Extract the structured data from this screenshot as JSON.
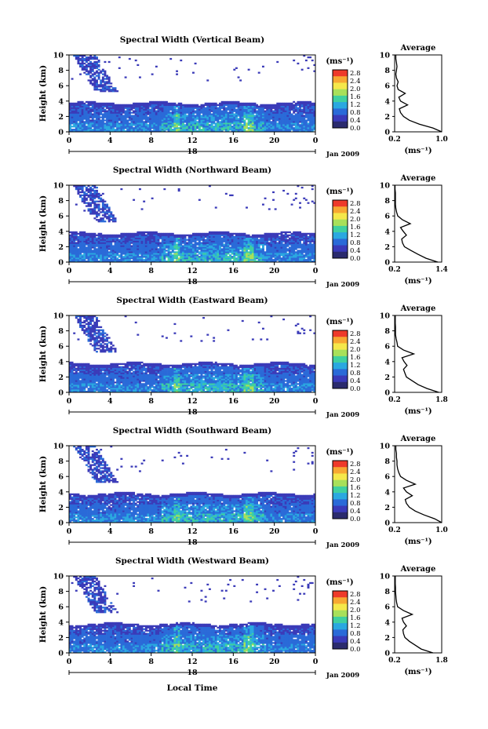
{
  "figure": {
    "common": {
      "ylabel": "Height (km)",
      "unit_label": "(ms⁻¹)",
      "colorbar_ticks": [
        "2.8",
        "2.4",
        "2.0",
        "1.6",
        "1.2",
        "0.8",
        "0.4",
        "0.0"
      ],
      "colorbar_colors": [
        "#ee3a2a",
        "#f7a832",
        "#f5e84a",
        "#a8e05a",
        "#3fd0a0",
        "#2aa8e0",
        "#2a6ad8",
        "#3a3ab8",
        "#2b2b6e"
      ],
      "x_ticks": [
        "0",
        "4",
        "8",
        "12",
        "16",
        "20",
        "0"
      ],
      "y_ticks": [
        "0",
        "2",
        "4",
        "6",
        "8",
        "10"
      ],
      "day_label": "18",
      "month_label": "Jan 2009",
      "avg_title": "Average",
      "avg_y_ticks": [
        "0",
        "2",
        "4",
        "6",
        "8",
        "10"
      ],
      "avg_xlabel": "(ms⁻¹)",
      "xlabel_bottom": "Local Time"
    },
    "panels": [
      {
        "title": "Spectral Width (Vertical Beam)",
        "avg_x_ticks": [
          "0.2",
          "1.0"
        ]
      },
      {
        "title": "Spectral Width (Northward Beam)",
        "avg_x_ticks": [
          "0.2",
          "1.4"
        ]
      },
      {
        "title": "Spectral Width (Eastward Beam)",
        "avg_x_ticks": [
          "0.2",
          "1.8"
        ]
      },
      {
        "title": "Spectral Width (Southward Beam)",
        "avg_x_ticks": [
          "0.2",
          "1.0"
        ]
      },
      {
        "title": "Spectral Width (Westward Beam)",
        "avg_x_ticks": [
          "0.2",
          "1.8"
        ]
      }
    ]
  },
  "chart_data": [
    {
      "type": "heatmap",
      "title": "Spectral Width (Vertical Beam)",
      "xlabel": "",
      "ylabel": "Height (km)",
      "xlim": [
        0,
        24
      ],
      "ylim": [
        0,
        10
      ],
      "colorbar_range": [
        0.0,
        2.8
      ],
      "colorbar_unit": "(ms⁻¹)",
      "average_profile": {
        "title": "Average",
        "xlim": [
          0.2,
          1.0
        ],
        "x": [
          1.0,
          0.85,
          0.62,
          0.45,
          0.35,
          0.3,
          0.28,
          0.42,
          0.3,
          0.27,
          0.38,
          0.26,
          0.24,
          0.26,
          0.23,
          0.22,
          0.23,
          0.24,
          0.23,
          0.22,
          0.22
        ],
        "y": [
          0,
          0.5,
          1,
          1.5,
          2,
          2.5,
          3,
          3.5,
          4,
          4.5,
          5,
          5.5,
          6,
          6.5,
          7,
          7.5,
          8,
          8.5,
          9,
          9.5,
          10
        ]
      }
    },
    {
      "type": "heatmap",
      "title": "Spectral Width (Northward Beam)",
      "xlabel": "",
      "ylabel": "Height (km)",
      "xlim": [
        0,
        24
      ],
      "ylim": [
        0,
        10
      ],
      "colorbar_range": [
        0.0,
        2.8
      ],
      "colorbar_unit": "(ms⁻¹)",
      "average_profile": {
        "title": "Average",
        "xlim": [
          0.2,
          1.4
        ],
        "x": [
          1.3,
          1.0,
          0.8,
          0.62,
          0.45,
          0.4,
          0.38,
          0.5,
          0.42,
          0.35,
          0.6,
          0.4,
          0.28,
          0.25,
          0.23,
          0.22,
          0.22,
          0.22,
          0.22,
          0.21,
          0.21
        ],
        "y": [
          0,
          0.5,
          1,
          1.5,
          2,
          2.5,
          3,
          3.5,
          4,
          4.5,
          5,
          5.5,
          6,
          6.5,
          7,
          7.5,
          8,
          8.5,
          9,
          9.5,
          10
        ]
      }
    },
    {
      "type": "heatmap",
      "title": "Spectral Width (Eastward Beam)",
      "xlabel": "",
      "ylabel": "Height (km)",
      "xlim": [
        0,
        24
      ],
      "ylim": [
        0,
        10
      ],
      "colorbar_range": [
        0.0,
        2.8
      ],
      "colorbar_unit": "(ms⁻¹)",
      "average_profile": {
        "title": "Average",
        "xlim": [
          0.2,
          1.8
        ],
        "x": [
          1.7,
          1.3,
          1.0,
          0.8,
          0.6,
          0.55,
          0.5,
          0.62,
          0.52,
          0.45,
          0.85,
          0.5,
          0.3,
          0.28,
          0.25,
          0.23,
          0.23,
          0.23,
          0.22,
          0.22,
          0.22
        ],
        "y": [
          0,
          0.5,
          1,
          1.5,
          2,
          2.5,
          3,
          3.5,
          4,
          4.5,
          5,
          5.5,
          6,
          6.5,
          7,
          7.5,
          8,
          8.5,
          9,
          9.5,
          10
        ]
      }
    },
    {
      "type": "heatmap",
      "title": "Spectral Width (Southward Beam)",
      "xlabel": "",
      "ylabel": "Height (km)",
      "xlim": [
        0,
        24
      ],
      "ylim": [
        0,
        10
      ],
      "colorbar_range": [
        0.0,
        2.8
      ],
      "colorbar_unit": "(ms⁻¹)",
      "average_profile": {
        "title": "Average",
        "xlim": [
          0.2,
          1.0
        ],
        "x": [
          1.0,
          0.88,
          0.7,
          0.55,
          0.45,
          0.4,
          0.38,
          0.5,
          0.4,
          0.35,
          0.55,
          0.4,
          0.3,
          0.27,
          0.25,
          0.24,
          0.24,
          0.23,
          0.23,
          0.22,
          0.22
        ],
        "y": [
          0,
          0.5,
          1,
          1.5,
          2,
          2.5,
          3,
          3.5,
          4,
          4.5,
          5,
          5.5,
          6,
          6.5,
          7,
          7.5,
          8,
          8.5,
          9,
          9.5,
          10
        ]
      }
    },
    {
      "type": "heatmap",
      "title": "Spectral Width (Westward Beam)",
      "xlabel": "Local Time",
      "ylabel": "Height (km)",
      "xlim": [
        0,
        24
      ],
      "ylim": [
        0,
        10
      ],
      "colorbar_range": [
        0.0,
        2.8
      ],
      "colorbar_unit": "(ms⁻¹)",
      "average_profile": {
        "title": "Average",
        "xlim": [
          0.2,
          1.8
        ],
        "x": [
          1.5,
          1.1,
          0.9,
          0.7,
          0.55,
          0.5,
          0.48,
          0.6,
          0.5,
          0.45,
          0.8,
          0.5,
          0.3,
          0.27,
          0.25,
          0.24,
          0.23,
          0.23,
          0.22,
          0.22,
          0.22
        ],
        "y": [
          0,
          0.5,
          1,
          1.5,
          2,
          2.5,
          3,
          3.5,
          4,
          4.5,
          5,
          5.5,
          6,
          6.5,
          7,
          7.5,
          8,
          8.5,
          9,
          9.5,
          10
        ]
      }
    }
  ]
}
